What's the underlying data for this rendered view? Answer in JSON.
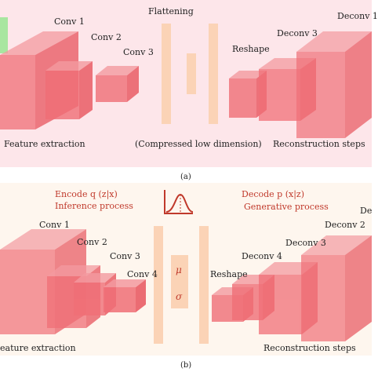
{
  "panel_a": {
    "labels": {
      "conv1": "Conv 1",
      "conv2": "Conv 2",
      "conv3": "Conv 3",
      "flattening": "Flattening",
      "reshape": "Reshape",
      "deconv3": "Deconv 3",
      "deconv_right": "Deconv 1",
      "feature_extraction": "Feature extraction",
      "compressed": "(Compressed low dimension)",
      "reconstruction": "Reconstruction steps"
    },
    "caption": "(a)",
    "colors": {
      "background": "#fde6ea",
      "block": "#f0666e",
      "flat": "#fbd3b6",
      "accent": "#a8e6a0"
    }
  },
  "panel_b": {
    "labels": {
      "encode_title": "Encode q (z|x)",
      "encode_sub": "Inference process",
      "decode_title": "Decode p (x|z)",
      "decode_sub": "Generative process",
      "conv1": "Conv 1",
      "conv2": "Conv 2",
      "conv3": "Conv 3",
      "conv4": "Conv 4",
      "mu": "μ",
      "sigma": "σ",
      "reshape": "Reshape",
      "deconv4": "Deconv 4",
      "deconv3": "Deconv 3",
      "deconv2": "Deconv 2",
      "deconv_edge": "De",
      "feature_extraction": "eature extraction",
      "reconstruction": "Reconstruction steps"
    },
    "caption": "(b)",
    "colors": {
      "background": "#fef6ee",
      "block": "#f0666e",
      "flat": "#fbd3b6",
      "icon": "#c0392b"
    }
  }
}
